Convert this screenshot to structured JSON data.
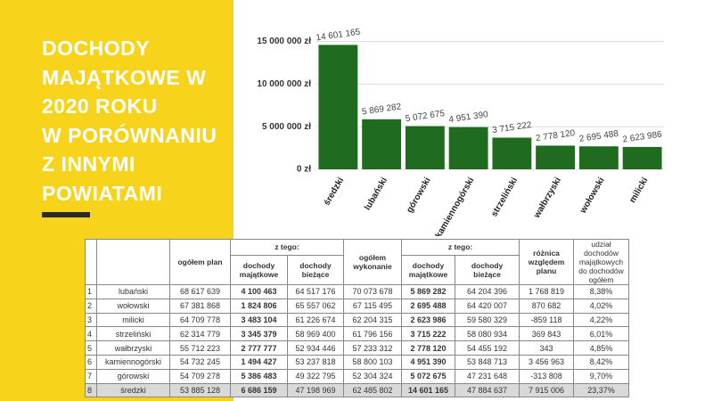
{
  "slide_title": [
    "DOCHODY",
    "MAJĄTKOWE W",
    "2020 ROKU",
    "W PORÓWNANIU",
    "Z INNYMI",
    "POWIATAMI"
  ],
  "chart_data": {
    "type": "bar",
    "categories": [
      "średzki",
      "lubański",
      "górowski",
      "kamiennogórski",
      "strzeliński",
      "wałbrzyski",
      "wołowski",
      "milicki"
    ],
    "values": [
      14601165,
      5869282,
      5072675,
      4951390,
      3715222,
      2778120,
      2695488,
      2623986
    ],
    "value_labels": [
      "14 601 165",
      "5 869 282",
      "5 072 675",
      "4 951 390",
      "3 715 222",
      "2 778 120",
      "2 695 488",
      "2 623 986"
    ],
    "color": "#1f6b1f",
    "ylim": [
      0,
      16000000
    ],
    "yticks": [
      {
        "value": 0,
        "label": "0 zł"
      },
      {
        "value": 5000000,
        "label": "5 000 000 zł"
      },
      {
        "value": 10000000,
        "label": "10 000 000 zł"
      },
      {
        "value": 15000000,
        "label": "15 000 000 zł"
      }
    ],
    "grid": true
  },
  "table": {
    "header": {
      "plan": "ogółem plan",
      "split1": "z tego:",
      "maj1": "dochody majątkowe",
      "biez1": "dochody bieżące",
      "exec": "ogółem wykonanie",
      "split2": "z tego:",
      "maj2": "dochody majątkowe",
      "biez2": "dochody bieżące",
      "diff": "różnica względem planu",
      "share": "udział dochodów majątkowych do dochodów ogółem"
    },
    "rows": [
      [
        "1",
        "lubański",
        "68 617 639",
        "4 100 463",
        "64 517 176",
        "70 073 678",
        "5 869 282",
        "64 204 396",
        "1 768 819",
        "8,38%"
      ],
      [
        "2",
        "wołowski",
        "67 381 868",
        "1 824 806",
        "65 557 062",
        "67 115 495",
        "2 695 488",
        "64 420 007",
        "870 682",
        "4,02%"
      ],
      [
        "3",
        "milicki",
        "64 709 778",
        "3 483 104",
        "61 226 674",
        "62 204 315",
        "2 623 986",
        "59 580 329",
        "-859 118",
        "4,22%"
      ],
      [
        "4",
        "strzeliński",
        "62 314 779",
        "3 345 379",
        "58 969 400",
        "61 796 156",
        "3 715 222",
        "58 080 934",
        "369 843",
        "6,01%"
      ],
      [
        "5",
        "wałbrzyski",
        "55 712 223",
        "2 777 777",
        "52 934 446",
        "57 233 312",
        "2 778 120",
        "54 455 192",
        "343",
        "4,85%"
      ],
      [
        "6",
        "kamiennogórski",
        "54 732 245",
        "1 494 427",
        "53 237 818",
        "58 800 103",
        "4 951 390",
        "53 848 713",
        "3 456 963",
        "8,42%"
      ],
      [
        "7",
        "górowski",
        "54 709 278",
        "5 386 483",
        "49 322 795",
        "52 304 324",
        "5 072 675",
        "47 231 648",
        "-313 808",
        "9,70%"
      ],
      [
        "8",
        "średzki",
        "53 885 128",
        "6 686 159",
        "47 198 969",
        "62 485 802",
        "14 601 165",
        "47 884 637",
        "7 915 006",
        "23,37%"
      ]
    ]
  }
}
